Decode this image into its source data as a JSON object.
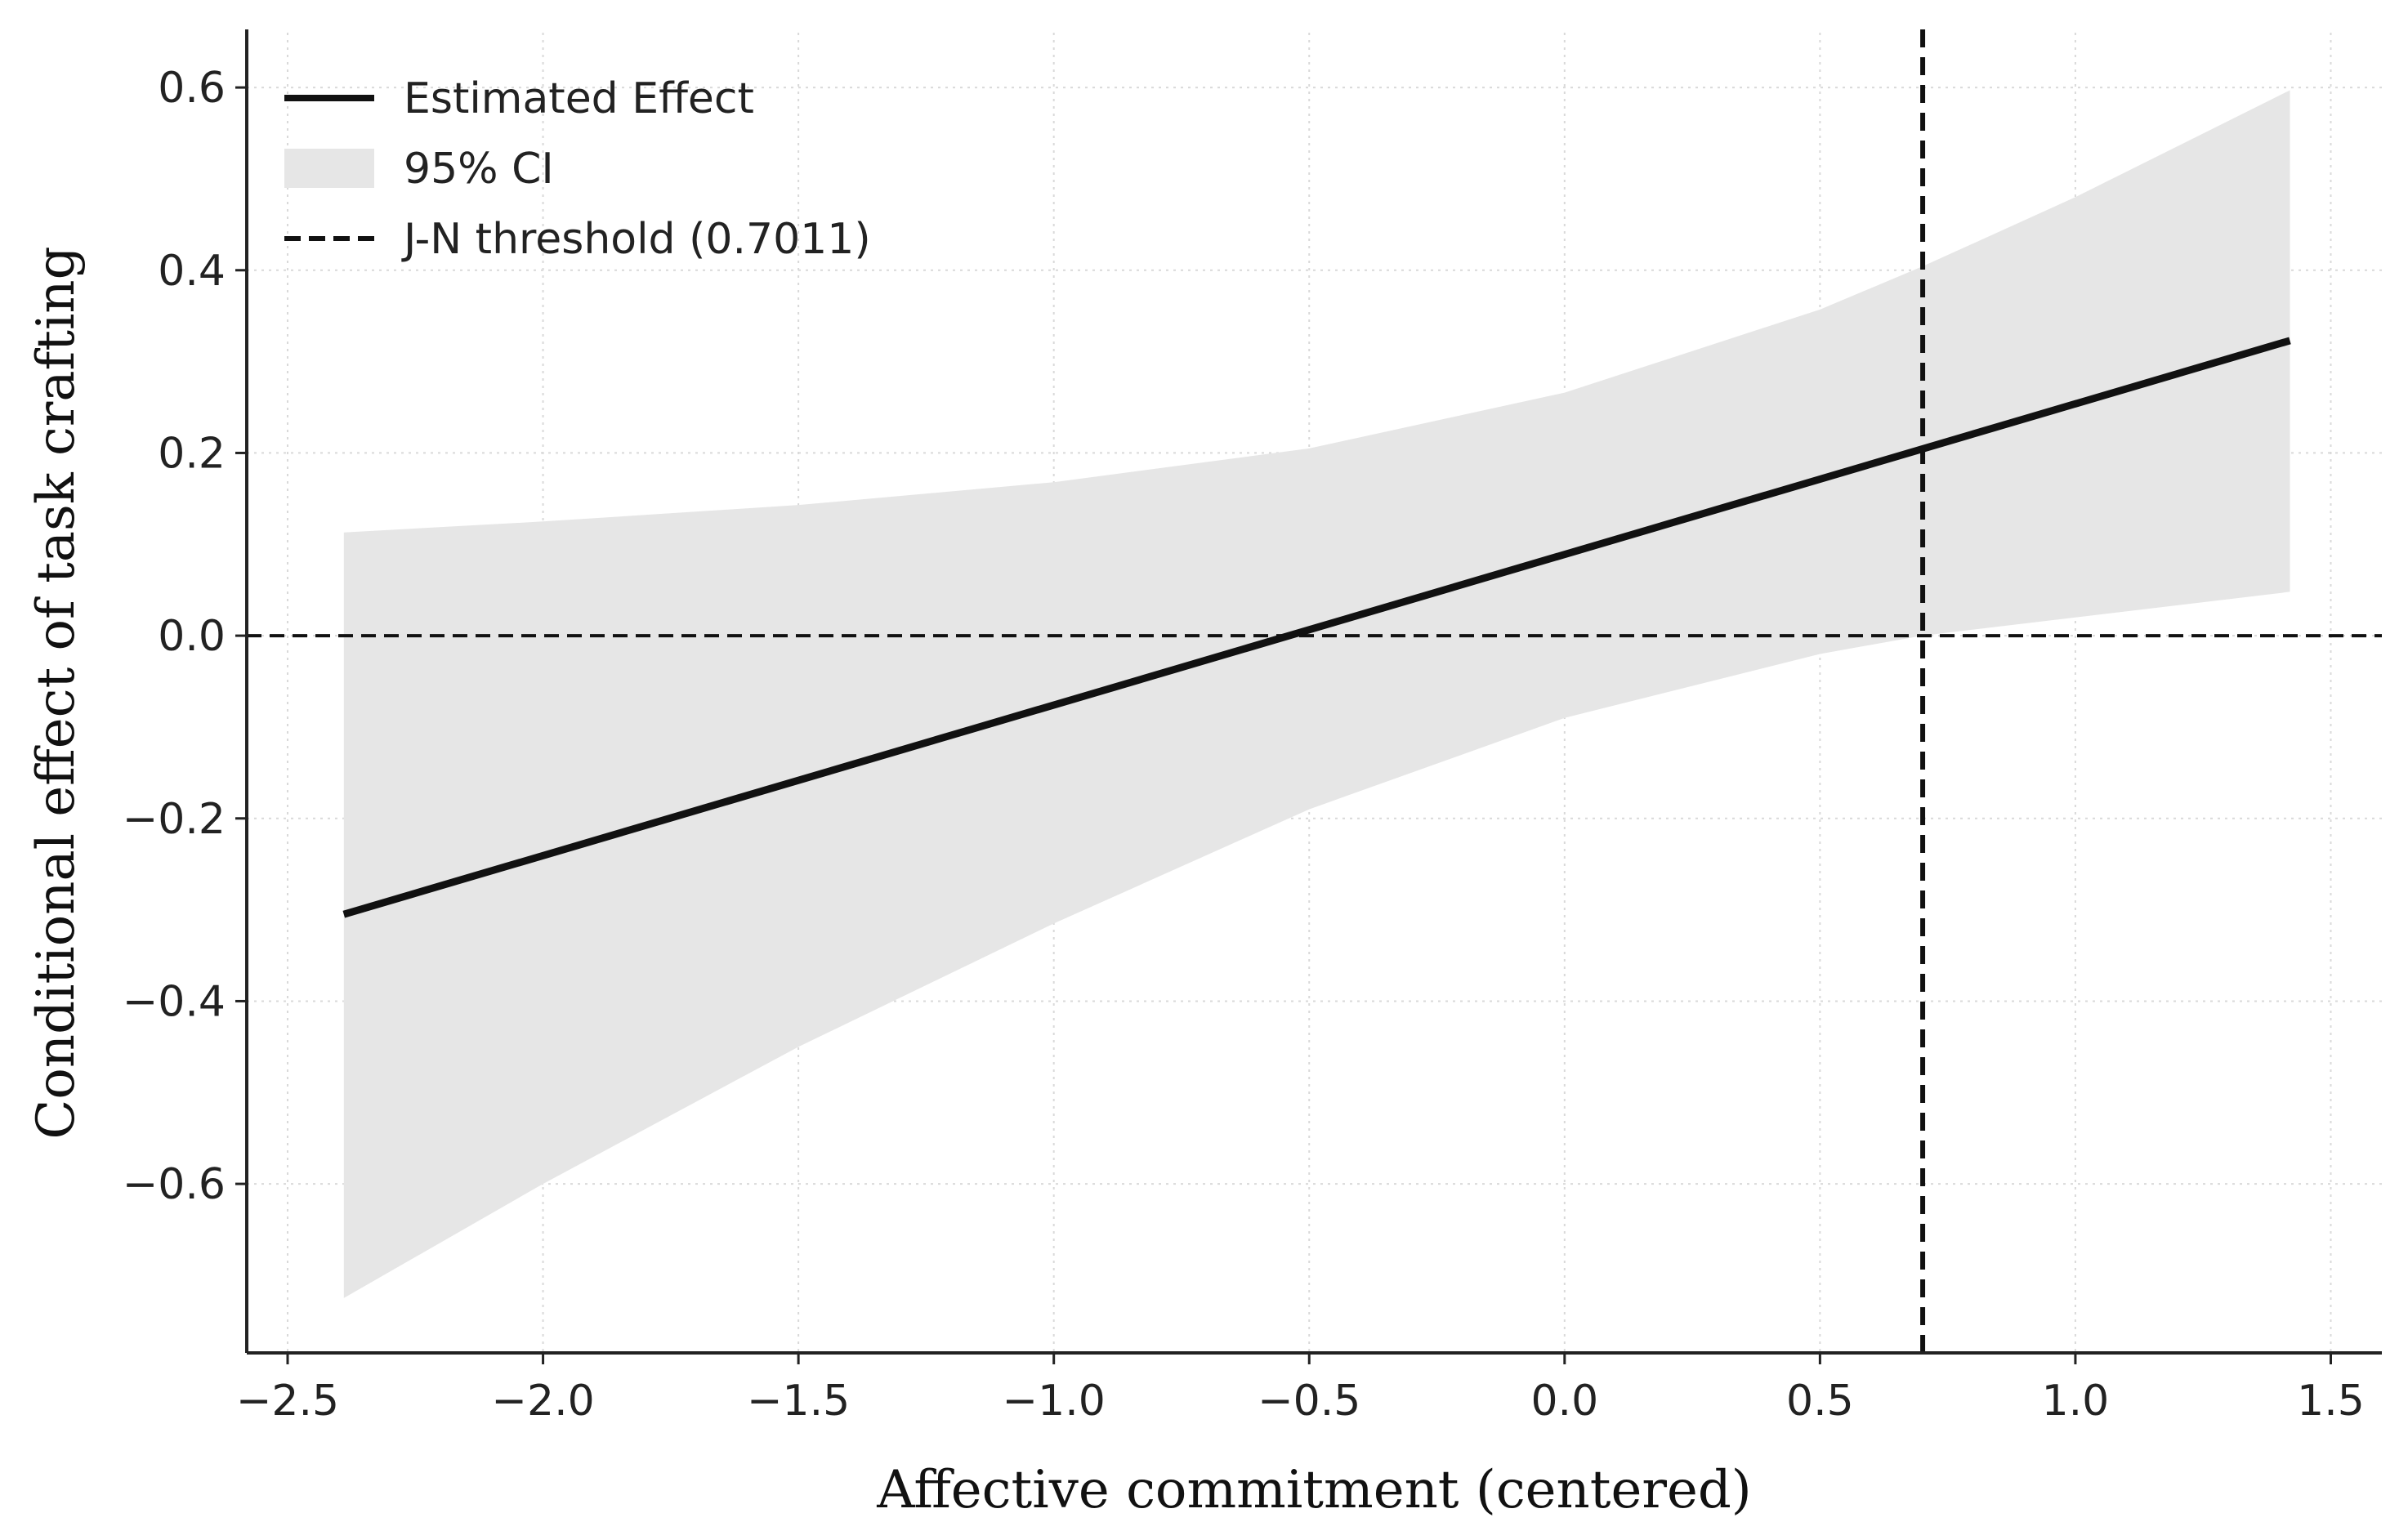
{
  "chart_data": {
    "type": "line",
    "title": "",
    "xlabel": "Affective commitment (centered)",
    "ylabel": "Conditional effect of task crafting",
    "xlim": [
      -2.58,
      1.6
    ],
    "ylim": [
      -0.785,
      0.66
    ],
    "xticks": [
      -2.5,
      -2.0,
      -1.5,
      -1.0,
      -0.5,
      0.0,
      0.5,
      1.0,
      1.5
    ],
    "xtick_labels": [
      "−2.5",
      "−2.0",
      "−1.5",
      "−1.0",
      "−0.5",
      "0.0",
      "0.5",
      "1.0",
      "1.5"
    ],
    "yticks": [
      -0.6,
      -0.4,
      -0.2,
      0.0,
      0.2,
      0.4,
      0.6
    ],
    "ytick_labels": [
      "−0.6",
      "−0.4",
      "−0.2",
      "0.0",
      "0.2",
      "0.4",
      "0.6"
    ],
    "grid": true,
    "legend_position": "top-left",
    "legend": [
      {
        "label": "Estimated Effect",
        "style": "solid-line"
      },
      {
        "label": "95% CI",
        "style": "shaded-band"
      },
      {
        "label": "J-N threshold (0.7011)",
        "style": "dashed-line"
      }
    ],
    "series": [
      {
        "name": "Estimated Effect",
        "x": [
          -2.39,
          1.42
        ],
        "y": [
          -0.305,
          0.323
        ]
      }
    ],
    "ci_band": {
      "name": "95% CI",
      "x": [
        -2.39,
        -2.0,
        -1.5,
        -1.0,
        -0.5,
        0.0,
        0.5,
        0.7,
        1.0,
        1.42
      ],
      "upper": [
        0.113,
        0.125,
        0.143,
        0.168,
        0.205,
        0.266,
        0.357,
        0.404,
        0.48,
        0.597
      ],
      "lower": [
        -0.725,
        -0.6,
        -0.45,
        -0.315,
        -0.19,
        -0.09,
        -0.02,
        0.0,
        0.02,
        0.048
      ]
    },
    "reference_lines": [
      {
        "orientation": "vertical",
        "value": 0.7011,
        "style": "dashed"
      },
      {
        "orientation": "horizontal",
        "value": 0.0,
        "style": "dashed"
      }
    ],
    "colors": {
      "line": "#111111",
      "band": "#e6e6e6",
      "grid": "#d9d9d9",
      "axis": "#222222"
    }
  }
}
